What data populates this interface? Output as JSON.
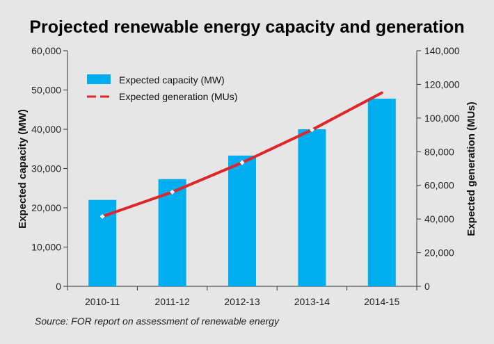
{
  "chart_data": {
    "type": "bar",
    "title": "Projected renewable energy capacity and generation",
    "categories": [
      "2010-11",
      "2011-12",
      "2012-13",
      "2013-14",
      "2014-15"
    ],
    "series": [
      {
        "name": "Expected capacity (MW)",
        "type": "bar",
        "axis": "left",
        "values": [
          22000,
          27300,
          33300,
          40000,
          47800
        ],
        "color": "#00aeef"
      },
      {
        "name": "Expected generation (MUs)",
        "type": "line",
        "axis": "right",
        "values": [
          41500,
          56000,
          73500,
          93000,
          115000
        ],
        "color": "#e0262b"
      }
    ],
    "ylabel": "Expected capacity (MW)",
    "y2label": "Expected generation (MUs)",
    "ylim": [
      0,
      60000
    ],
    "y2lim": [
      0,
      140000
    ],
    "yticks": [
      "0",
      "10,000",
      "20,000",
      "30,000",
      "40,000",
      "50,000",
      "60,000"
    ],
    "y2ticks": [
      "0",
      "20,000",
      "40,000",
      "60,000",
      "80,000",
      "100,000",
      "120,000",
      "140,000"
    ],
    "legend_position": "top-left"
  },
  "source": "Source: FOR report on assessment of renewable energy"
}
